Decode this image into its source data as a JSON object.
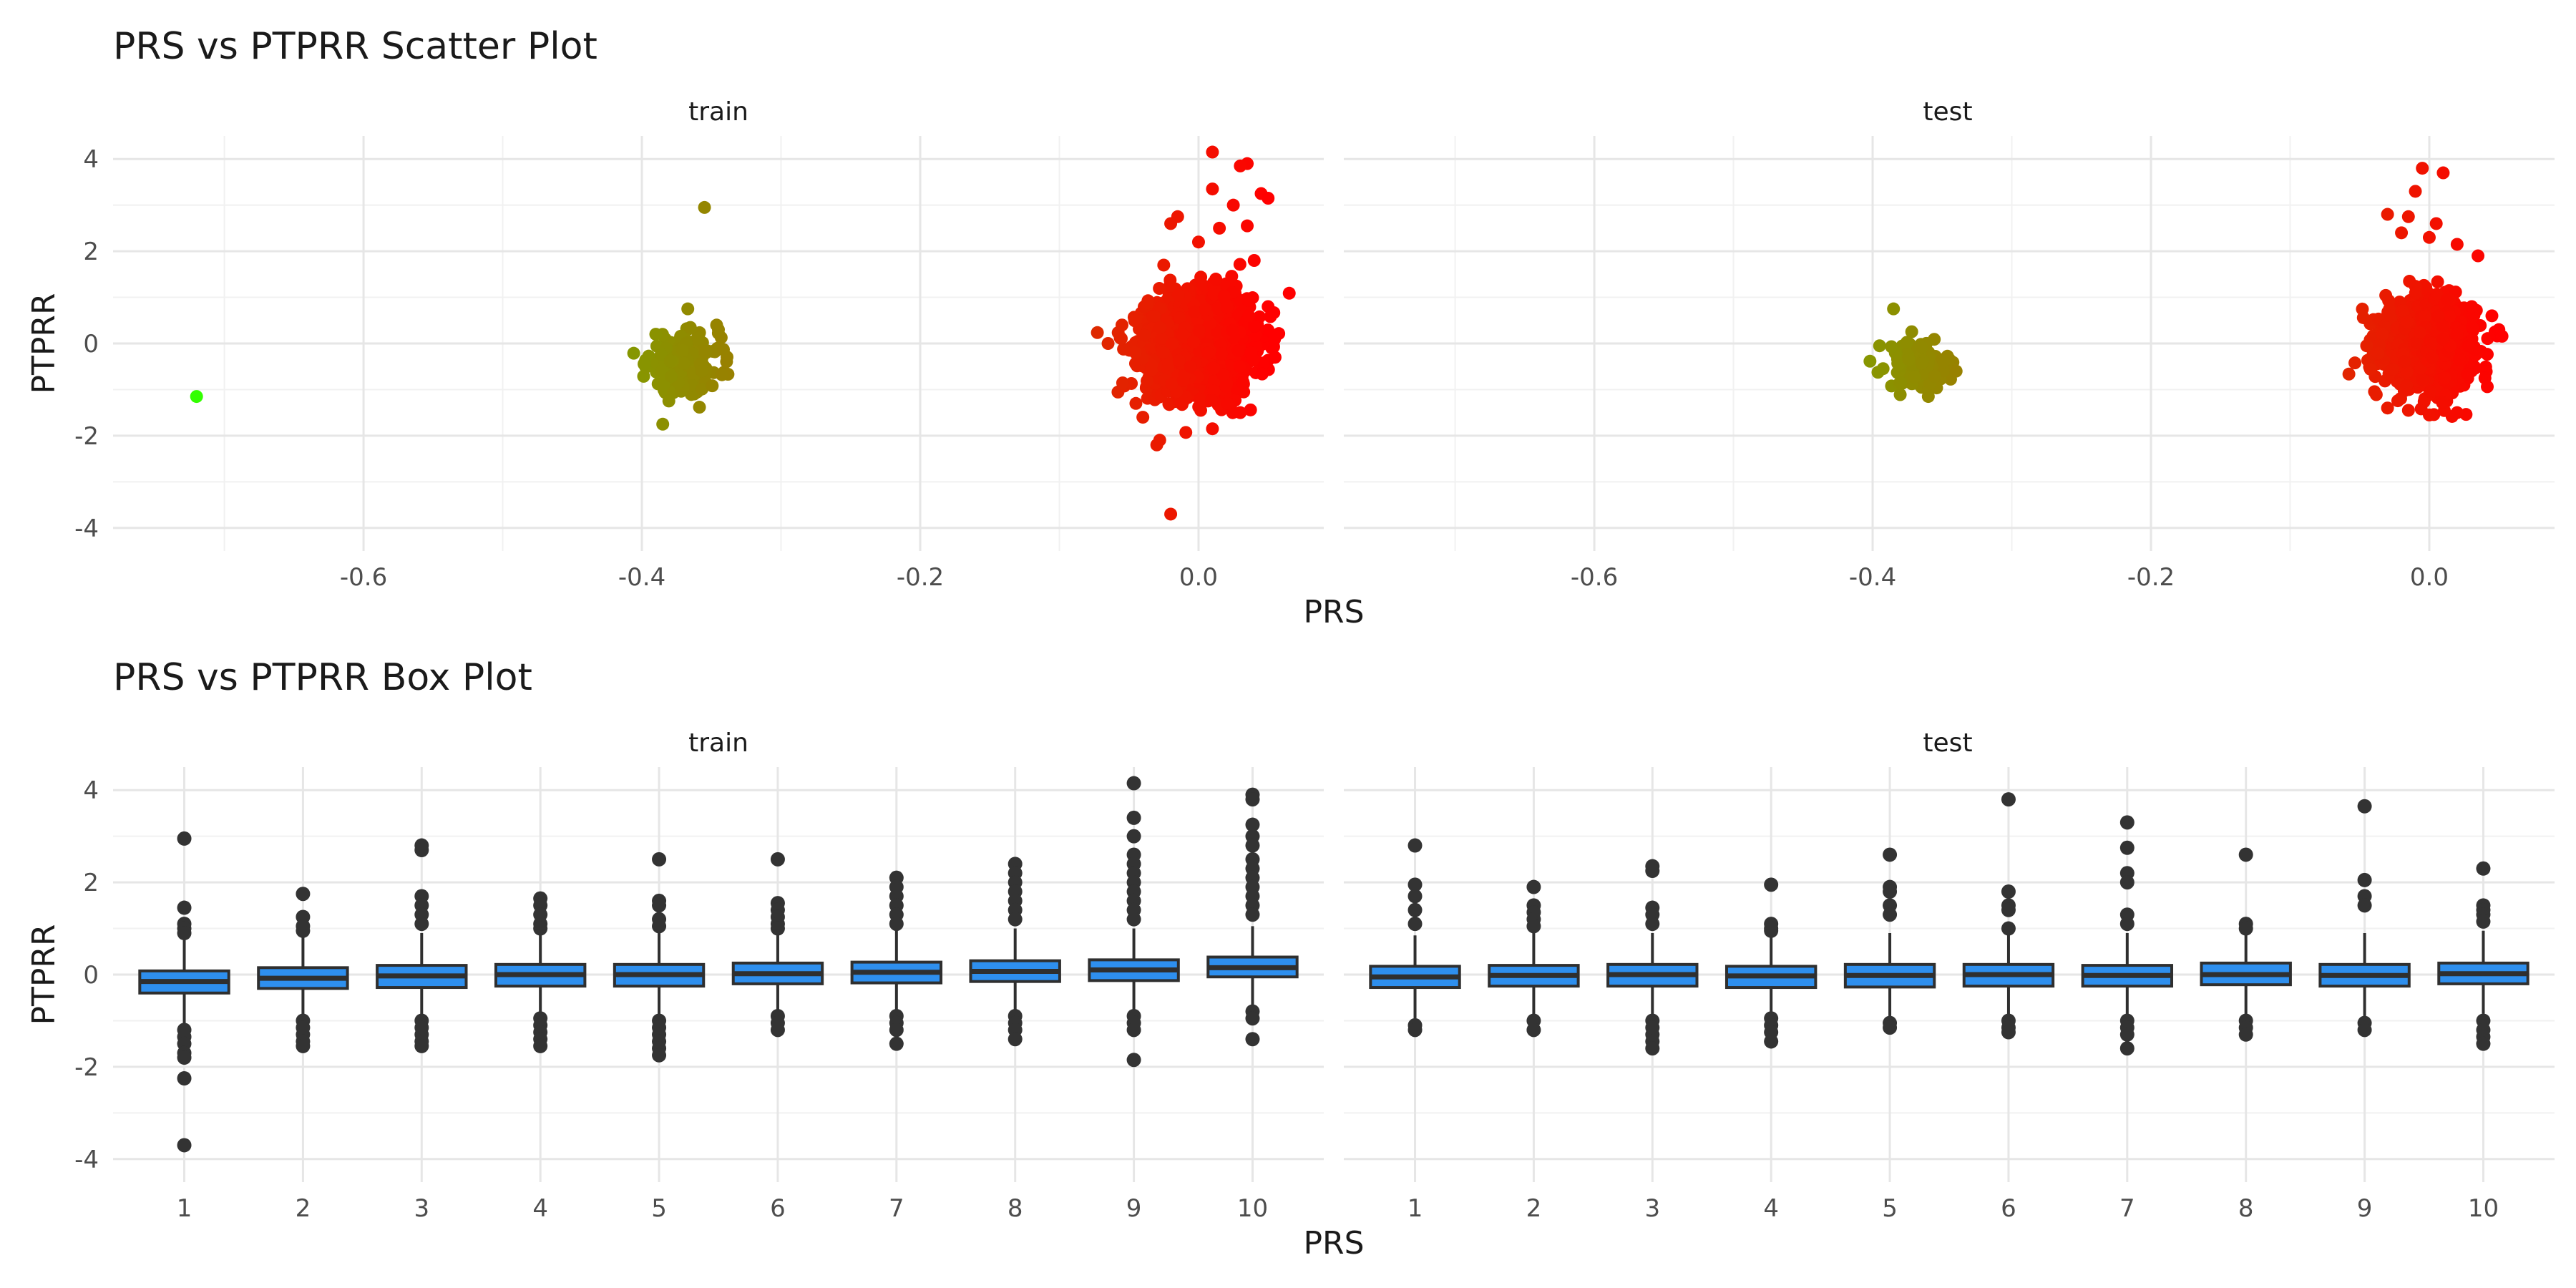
{
  "chart_data": [
    {
      "type": "scatter",
      "title": "PRS vs PTPRR Scatter Plot",
      "xlabel": "PRS",
      "ylabel": "PTPRR",
      "facets": [
        "train",
        "test"
      ],
      "xlim": [
        -0.78,
        0.09
      ],
      "ylim": [
        -4.5,
        4.5
      ],
      "x_ticks": [
        -0.6,
        -0.4,
        -0.2,
        0.0
      ],
      "x_tick_labels": [
        "-0.6",
        "-0.4",
        "-0.2",
        "0.0"
      ],
      "y_ticks": [
        -4,
        -2,
        0,
        2,
        4
      ],
      "y_tick_labels": [
        "-4",
        "-2",
        "0",
        "2",
        "4"
      ],
      "grid": true,
      "legend": "none",
      "color_scale": {
        "low": "#33ff00",
        "high": "#ff0000",
        "mapped_to": "PRS",
        "domain": [
          -0.72,
          0.05
        ]
      },
      "panels": [
        {
          "name": "train",
          "clusters": [
            {
              "center": [
                0.0,
                0.0
              ],
              "sd": [
                0.018,
                0.5
              ],
              "n": 2600
            },
            {
              "center": [
                -0.37,
                -0.45
              ],
              "sd": [
                0.013,
                0.3
              ],
              "n": 260
            }
          ],
          "points": [
            [
              -0.72,
              -1.15
            ],
            [
              -0.355,
              2.95
            ],
            [
              -0.385,
              -1.75
            ],
            [
              -0.367,
              0.75
            ],
            [
              -0.345,
              0.3
            ],
            [
              -0.39,
              0.2
            ],
            [
              0.01,
              4.15
            ],
            [
              0.035,
              3.9
            ],
            [
              0.03,
              3.85
            ],
            [
              0.045,
              3.25
            ],
            [
              0.05,
              3.15
            ],
            [
              0.01,
              3.35
            ],
            [
              0.025,
              3.0
            ],
            [
              -0.015,
              2.75
            ],
            [
              -0.02,
              2.6
            ],
            [
              0.015,
              2.5
            ],
            [
              0.035,
              2.55
            ],
            [
              0.0,
              2.2
            ],
            [
              0.04,
              1.8
            ],
            [
              -0.025,
              1.7
            ],
            [
              -0.065,
              0.0
            ],
            [
              -0.04,
              -1.6
            ],
            [
              -0.03,
              -2.2
            ],
            [
              0.01,
              -1.85
            ],
            [
              -0.02,
              -3.7
            ],
            [
              0.05,
              0.8
            ],
            [
              -0.055,
              0.4
            ],
            [
              0.055,
              -0.3
            ],
            [
              -0.045,
              -1.3
            ],
            [
              0.03,
              -1.5
            ]
          ]
        },
        {
          "name": "test",
          "clusters": [
            {
              "center": [
                0.0,
                0.0
              ],
              "sd": [
                0.016,
                0.45
              ],
              "n": 1100
            },
            {
              "center": [
                -0.365,
                -0.45
              ],
              "sd": [
                0.012,
                0.26
              ],
              "n": 110
            }
          ],
          "points": [
            [
              -0.385,
              0.75
            ],
            [
              -0.395,
              -0.05
            ],
            [
              -0.36,
              -1.15
            ],
            [
              -0.34,
              -0.6
            ],
            [
              -0.38,
              -0.85
            ],
            [
              -0.005,
              3.8
            ],
            [
              0.01,
              3.7
            ],
            [
              -0.01,
              3.3
            ],
            [
              -0.03,
              2.8
            ],
            [
              -0.015,
              2.75
            ],
            [
              0.005,
              2.6
            ],
            [
              -0.02,
              2.4
            ],
            [
              0.0,
              2.3
            ],
            [
              0.02,
              2.15
            ],
            [
              0.035,
              1.9
            ],
            [
              0.045,
              0.6
            ],
            [
              0.05,
              0.3
            ],
            [
              -0.045,
              -0.05
            ],
            [
              0.04,
              -0.75
            ],
            [
              -0.03,
              -1.4
            ],
            [
              0.0,
              -1.55
            ],
            [
              0.02,
              -1.5
            ],
            [
              -0.015,
              -1.45
            ]
          ]
        }
      ]
    },
    {
      "type": "box",
      "title": "PRS vs PTPRR Box Plot",
      "xlabel": "PRS",
      "ylabel": "PTPRR",
      "facets": [
        "train",
        "test"
      ],
      "categories": [
        "1",
        "2",
        "3",
        "4",
        "5",
        "6",
        "7",
        "8",
        "9",
        "10"
      ],
      "ylim": [
        -4.5,
        4.5
      ],
      "y_ticks": [
        -4,
        -2,
        0,
        2,
        4
      ],
      "y_tick_labels": [
        "-4",
        "-2",
        "0",
        "2",
        "4"
      ],
      "grid": true,
      "box_fill": "#2e8fee",
      "box_stroke": "#2f2f2f",
      "panels": [
        {
          "name": "train",
          "boxes": [
            {
              "category": "1",
              "q1": -0.4,
              "median": -0.15,
              "q3": 0.08,
              "whisker_low": -1.1,
              "whisker_high": 0.75,
              "outliers": [
                2.95,
                1.45,
                1.1,
                1.0,
                0.9,
                -1.2,
                -1.35,
                -1.5,
                -1.7,
                -1.8,
                -2.25,
                -3.7
              ]
            },
            {
              "category": "2",
              "q1": -0.3,
              "median": -0.08,
              "q3": 0.15,
              "whisker_low": -0.95,
              "whisker_high": 0.8,
              "outliers": [
                1.75,
                1.25,
                1.05,
                0.95,
                -1.0,
                -1.15,
                -1.3,
                -1.45,
                -1.55
              ]
            },
            {
              "category": "3",
              "q1": -0.28,
              "median": -0.03,
              "q3": 0.2,
              "whisker_low": -0.95,
              "whisker_high": 0.9,
              "outliers": [
                2.8,
                2.7,
                1.7,
                1.5,
                1.3,
                1.1,
                -1.0,
                -1.15,
                -1.3,
                -1.45,
                -1.55
              ]
            },
            {
              "category": "4",
              "q1": -0.25,
              "median": 0.0,
              "q3": 0.22,
              "whisker_low": -0.9,
              "whisker_high": 0.9,
              "outliers": [
                1.65,
                1.5,
                1.3,
                1.1,
                1.0,
                -0.95,
                -1.1,
                -1.25,
                -1.4,
                -1.55
              ]
            },
            {
              "category": "5",
              "q1": -0.25,
              "median": 0.0,
              "q3": 0.22,
              "whisker_low": -0.9,
              "whisker_high": 0.9,
              "outliers": [
                2.5,
                1.6,
                1.5,
                1.2,
                1.05,
                -1.0,
                -1.15,
                -1.3,
                -1.45,
                -1.6,
                -1.75
              ]
            },
            {
              "category": "6",
              "q1": -0.2,
              "median": 0.02,
              "q3": 0.25,
              "whisker_low": -0.85,
              "whisker_high": 0.9,
              "outliers": [
                2.5,
                1.55,
                1.4,
                1.25,
                1.1,
                1.0,
                -0.9,
                -1.05,
                -1.2
              ]
            },
            {
              "category": "7",
              "q1": -0.18,
              "median": 0.05,
              "q3": 0.27,
              "whisker_low": -0.85,
              "whisker_high": 0.95,
              "outliers": [
                2.1,
                1.9,
                1.7,
                1.5,
                1.3,
                1.1,
                -0.9,
                -1.05,
                -1.2,
                -1.5
              ]
            },
            {
              "category": "8",
              "q1": -0.15,
              "median": 0.07,
              "q3": 0.3,
              "whisker_low": -0.8,
              "whisker_high": 1.0,
              "outliers": [
                2.4,
                2.2,
                2.0,
                1.8,
                1.6,
                1.4,
                1.2,
                -0.9,
                -1.05,
                -1.2,
                -1.4
              ]
            },
            {
              "category": "9",
              "q1": -0.13,
              "median": 0.1,
              "q3": 0.32,
              "whisker_low": -0.8,
              "whisker_high": 1.0,
              "outliers": [
                4.15,
                3.4,
                3.0,
                2.6,
                2.4,
                2.2,
                2.0,
                1.8,
                1.6,
                1.4,
                1.2,
                -0.9,
                -1.05,
                -1.2,
                -1.85
              ]
            },
            {
              "category": "10",
              "q1": -0.05,
              "median": 0.15,
              "q3": 0.38,
              "whisker_low": -0.7,
              "whisker_high": 1.05,
              "outliers": [
                3.9,
                3.8,
                3.25,
                3.0,
                2.8,
                2.5,
                2.3,
                2.1,
                1.9,
                1.7,
                1.5,
                1.3,
                -0.8,
                -0.95,
                -1.4
              ]
            }
          ]
        },
        {
          "name": "test",
          "boxes": [
            {
              "category": "1",
              "q1": -0.28,
              "median": -0.05,
              "q3": 0.18,
              "whisker_low": -0.95,
              "whisker_high": 0.85,
              "outliers": [
                2.8,
                1.95,
                1.7,
                1.4,
                1.1,
                -1.1,
                -1.2
              ]
            },
            {
              "category": "2",
              "q1": -0.25,
              "median": -0.02,
              "q3": 0.2,
              "whisker_low": -0.9,
              "whisker_high": 0.9,
              "outliers": [
                1.9,
                1.5,
                1.35,
                1.2,
                1.05,
                -1.0,
                -1.2
              ]
            },
            {
              "category": "3",
              "q1": -0.25,
              "median": 0.0,
              "q3": 0.22,
              "whisker_low": -0.9,
              "whisker_high": 0.9,
              "outliers": [
                2.35,
                2.25,
                1.45,
                1.3,
                1.1,
                -1.0,
                -1.15,
                -1.3,
                -1.45,
                -1.6
              ]
            },
            {
              "category": "4",
              "q1": -0.28,
              "median": -0.03,
              "q3": 0.18,
              "whisker_low": -0.9,
              "whisker_high": 0.85,
              "outliers": [
                1.95,
                1.1,
                1.0,
                0.95,
                -0.95,
                -1.1,
                -1.25,
                -1.45
              ]
            },
            {
              "category": "5",
              "q1": -0.27,
              "median": -0.02,
              "q3": 0.22,
              "whisker_low": -0.95,
              "whisker_high": 0.9,
              "outliers": [
                2.6,
                1.9,
                1.8,
                1.5,
                1.3,
                -1.05,
                -1.15
              ]
            },
            {
              "category": "6",
              "q1": -0.25,
              "median": 0.0,
              "q3": 0.22,
              "whisker_low": -0.9,
              "whisker_high": 0.9,
              "outliers": [
                3.8,
                1.8,
                1.5,
                1.4,
                1.0,
                -1.0,
                -1.15,
                -1.25
              ]
            },
            {
              "category": "7",
              "q1": -0.25,
              "median": -0.02,
              "q3": 0.2,
              "whisker_low": -0.9,
              "whisker_high": 0.9,
              "outliers": [
                3.3,
                2.75,
                2.2,
                2.0,
                1.3,
                1.1,
                -1.0,
                -1.15,
                -1.3,
                -1.6
              ]
            },
            {
              "category": "8",
              "q1": -0.22,
              "median": 0.0,
              "q3": 0.25,
              "whisker_low": -0.9,
              "whisker_high": 0.95,
              "outliers": [
                2.6,
                1.1,
                1.0,
                -1.0,
                -1.15,
                -1.3
              ]
            },
            {
              "category": "9",
              "q1": -0.25,
              "median": -0.02,
              "q3": 0.22,
              "whisker_low": -0.9,
              "whisker_high": 0.9,
              "outliers": [
                3.65,
                2.05,
                1.7,
                1.5,
                -1.05,
                -1.2
              ]
            },
            {
              "category": "10",
              "q1": -0.2,
              "median": 0.02,
              "q3": 0.25,
              "whisker_low": -0.85,
              "whisker_high": 0.95,
              "outliers": [
                2.3,
                1.5,
                1.4,
                1.3,
                1.15,
                -1.0,
                -1.2,
                -1.35,
                -1.5
              ]
            }
          ]
        }
      ]
    }
  ]
}
